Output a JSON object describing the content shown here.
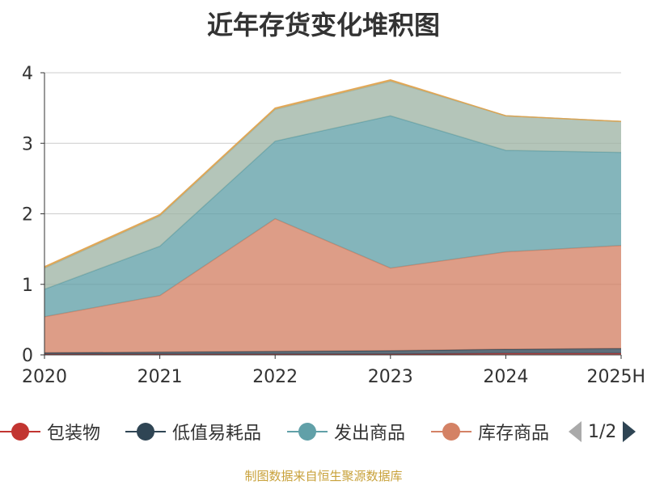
{
  "title": "近年存货变化堆积图",
  "source": "制图数据来自恒生聚源数据库",
  "legend": {
    "items": [
      {
        "label": "包装物",
        "color": "#c23531"
      },
      {
        "label": "低值易耗品",
        "color": "#2f4554"
      },
      {
        "label": "发出商品",
        "color": "#61a0a8"
      },
      {
        "label": "库存商品",
        "color": "#d48265"
      }
    ],
    "page": "1/2"
  },
  "chart_data": {
    "type": "area",
    "stacked": true,
    "categories": [
      "2020",
      "2021",
      "2022",
      "2023",
      "2024",
      "2025H"
    ],
    "ylim": [
      0,
      4
    ],
    "yticks": [
      "0",
      "1",
      "2",
      "3",
      "4"
    ],
    "grid": true,
    "series": [
      {
        "name": "包装物",
        "color": "#c23531",
        "values": [
          0.01,
          0.01,
          0.01,
          0.01,
          0.02,
          0.02
        ]
      },
      {
        "name": "低值易耗品",
        "color": "#2f4554",
        "values": [
          0.02,
          0.03,
          0.04,
          0.05,
          0.06,
          0.07
        ]
      },
      {
        "name": "库存商品",
        "color": "#d48265",
        "values": [
          0.51,
          0.8,
          1.88,
          1.17,
          1.38,
          1.46
        ]
      },
      {
        "name": "发出商品",
        "color": "#61a0a8",
        "values": [
          0.39,
          0.7,
          1.1,
          2.16,
          1.44,
          1.32
        ]
      },
      {
        "color": "#9fb5a5",
        "values": [
          0.3,
          0.43,
          0.45,
          0.49,
          0.49,
          0.44
        ]
      },
      {
        "color": "#e0a24b",
        "values": [
          0.02,
          0.02,
          0.02,
          0.02,
          0.0,
          0.0
        ]
      }
    ]
  }
}
